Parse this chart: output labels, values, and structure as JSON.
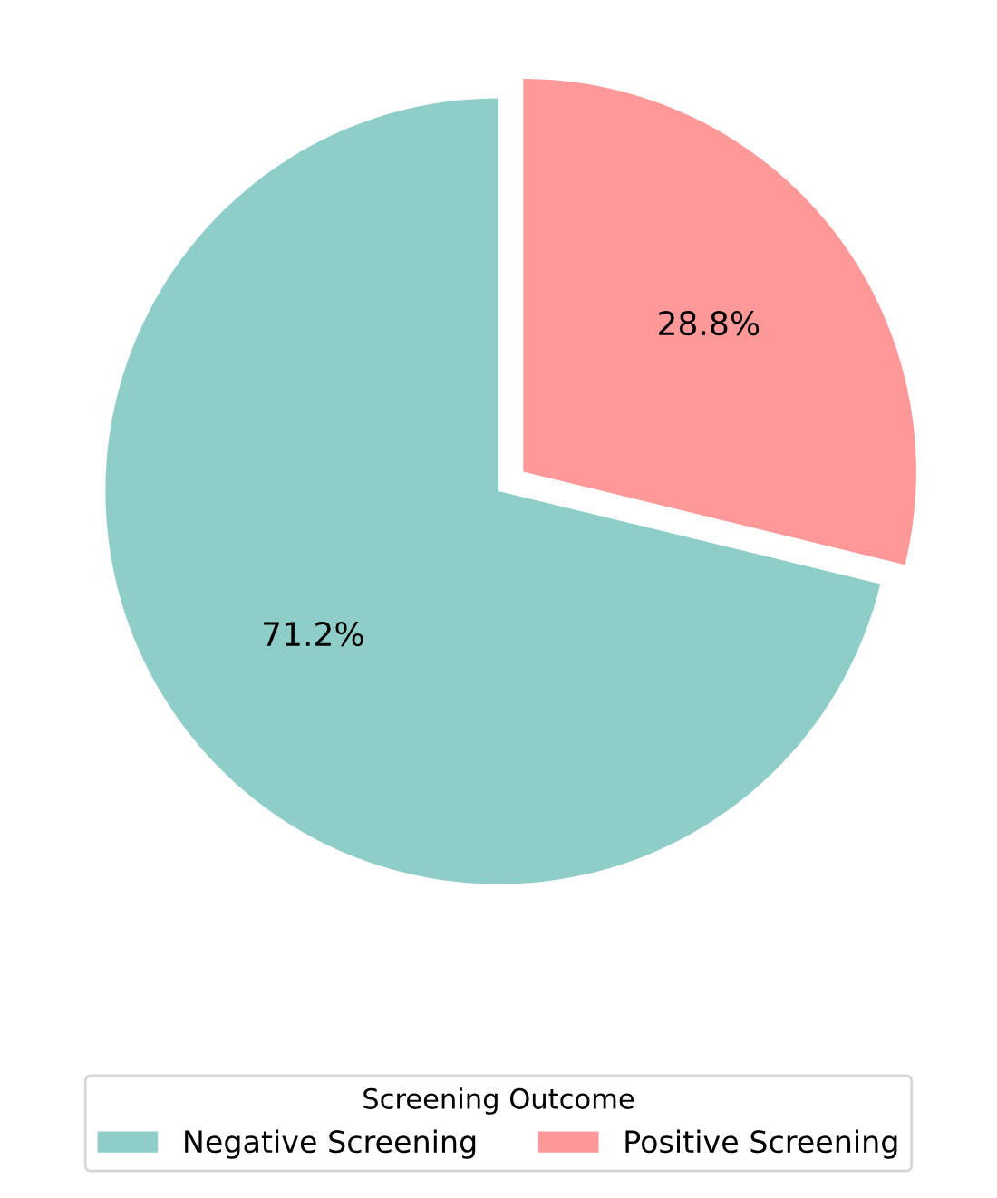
{
  "chart_data": {
    "type": "pie",
    "categories": [
      "Negative Screening",
      "Positive Screening"
    ],
    "values": [
      71.2,
      28.8
    ],
    "colors": [
      "#8ecdc8",
      "#ff9999"
    ],
    "value_labels": [
      "71.2%",
      "28.8%"
    ],
    "legend_title": "Screening Outcome",
    "legend": "bottom"
  }
}
